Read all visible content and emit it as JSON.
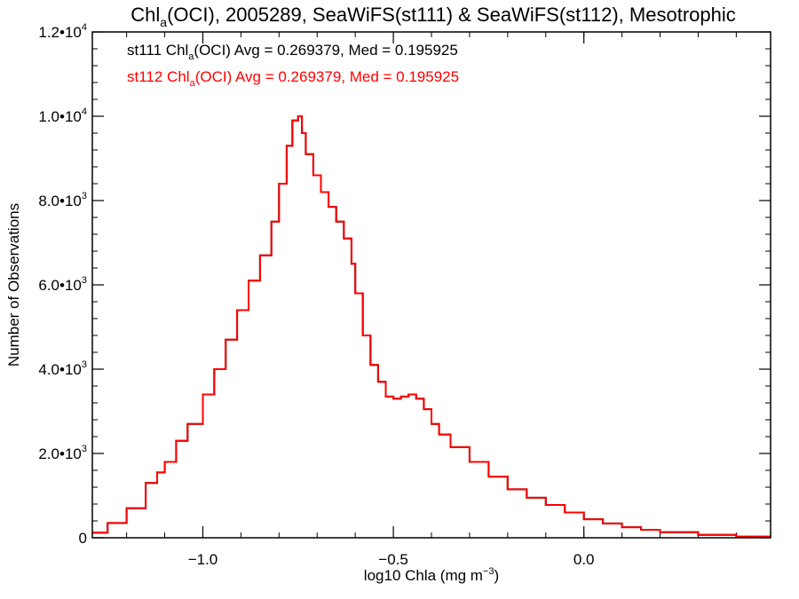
{
  "chart_data": {
    "type": "line",
    "title": {
      "prefix": "Chl",
      "prefix_sub": "a",
      "rest": "(OCI), 2005289, SeaWiFS(st111) & SeaWiFS(st112), Mesotrophic"
    },
    "xlabel": {
      "text": "log10 Chla (mg m",
      "sup": "−3",
      "close": ")"
    },
    "ylabel": "Number of Observations",
    "xlim": [
      -1.29,
      0.49
    ],
    "ylim": [
      0,
      12000
    ],
    "x_ticks": [
      {
        "value": -1.0,
        "label": "−1.0"
      },
      {
        "value": -0.5,
        "label": "−0.5"
      },
      {
        "value": 0.0,
        "label": "0.0"
      }
    ],
    "x_minor_step": 0.1,
    "y_ticks": [
      {
        "value": 0,
        "mantissa": "0",
        "exp": ""
      },
      {
        "value": 2000,
        "mantissa": "2.0•10",
        "exp": "3"
      },
      {
        "value": 4000,
        "mantissa": "4.0•10",
        "exp": "3"
      },
      {
        "value": 6000,
        "mantissa": "6.0•10",
        "exp": "3"
      },
      {
        "value": 8000,
        "mantissa": "8.0•10",
        "exp": "3"
      },
      {
        "value": 10000,
        "mantissa": "1.0•10",
        "exp": "4"
      },
      {
        "value": 12000,
        "mantissa": "1.2•10",
        "exp": "4"
      }
    ],
    "y_minor_step": 400,
    "annotations": [
      {
        "series": "st111",
        "before": "st111 Chl",
        "sub": "a",
        "after": "(OCI) Avg = 0.269379, Med = 0.195925",
        "color": "#000000"
      },
      {
        "series": "st112",
        "before": "st112 Chl",
        "sub": "a",
        "after": "(OCI) Avg = 0.269379, Med = 0.195925",
        "color": "#ff0000"
      }
    ],
    "series": [
      {
        "name": "st111",
        "color": "#000000",
        "x": [
          -1.29,
          -1.25,
          -1.2,
          -1.15,
          -1.12,
          -1.1,
          -1.07,
          -1.04,
          -1.0,
          -0.97,
          -0.94,
          -0.91,
          -0.88,
          -0.85,
          -0.82,
          -0.8,
          -0.78,
          -0.765,
          -0.75,
          -0.74,
          -0.73,
          -0.71,
          -0.69,
          -0.67,
          -0.65,
          -0.63,
          -0.61,
          -0.6,
          -0.58,
          -0.56,
          -0.54,
          -0.52,
          -0.5,
          -0.48,
          -0.46,
          -0.44,
          -0.42,
          -0.4,
          -0.38,
          -0.35,
          -0.3,
          -0.25,
          -0.2,
          -0.15,
          -0.1,
          -0.05,
          0.0,
          0.05,
          0.1,
          0.15,
          0.2,
          0.3,
          0.4,
          0.49
        ],
        "y": [
          120,
          350,
          700,
          1300,
          1550,
          1800,
          2300,
          2700,
          3400,
          4000,
          4700,
          5400,
          6100,
          6700,
          7500,
          8400,
          9300,
          9900,
          10000,
          9600,
          9100,
          8600,
          8200,
          7850,
          7500,
          7100,
          6500,
          5800,
          4800,
          4100,
          3700,
          3350,
          3300,
          3350,
          3400,
          3300,
          3050,
          2700,
          2450,
          2150,
          1800,
          1450,
          1150,
          950,
          780,
          600,
          440,
          340,
          250,
          190,
          130,
          70,
          25,
          10
        ]
      },
      {
        "name": "st112",
        "color": "#ff0000",
        "x": [
          -1.29,
          -1.25,
          -1.2,
          -1.15,
          -1.12,
          -1.1,
          -1.07,
          -1.04,
          -1.0,
          -0.97,
          -0.94,
          -0.91,
          -0.88,
          -0.85,
          -0.82,
          -0.8,
          -0.78,
          -0.765,
          -0.75,
          -0.74,
          -0.73,
          -0.71,
          -0.69,
          -0.67,
          -0.65,
          -0.63,
          -0.61,
          -0.6,
          -0.58,
          -0.56,
          -0.54,
          -0.52,
          -0.5,
          -0.48,
          -0.46,
          -0.44,
          -0.42,
          -0.4,
          -0.38,
          -0.35,
          -0.3,
          -0.25,
          -0.2,
          -0.15,
          -0.1,
          -0.05,
          0.0,
          0.05,
          0.1,
          0.15,
          0.2,
          0.3,
          0.4,
          0.49
        ],
        "y": [
          120,
          350,
          700,
          1300,
          1550,
          1800,
          2300,
          2700,
          3400,
          4000,
          4700,
          5400,
          6100,
          6700,
          7500,
          8400,
          9300,
          9900,
          10000,
          9600,
          9100,
          8600,
          8200,
          7850,
          7500,
          7100,
          6500,
          5800,
          4800,
          4100,
          3700,
          3350,
          3300,
          3350,
          3400,
          3300,
          3050,
          2700,
          2450,
          2150,
          1800,
          1450,
          1150,
          950,
          780,
          600,
          440,
          340,
          250,
          190,
          130,
          70,
          25,
          10
        ]
      }
    ]
  }
}
